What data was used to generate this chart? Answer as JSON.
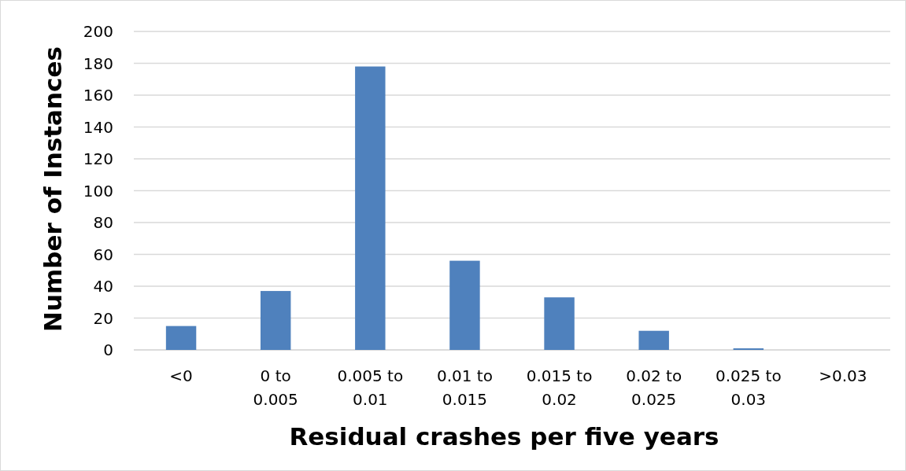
{
  "chart_data": {
    "type": "bar",
    "xlabel": "Residual crashes per five years",
    "ylabel": "Number of Instances",
    "categories": [
      "<0",
      "0  to 0.005",
      "0.005 to 0.01",
      "0.01 to 0.015",
      "0.015 to 0.02",
      "0.02 to 0.025",
      "0.025 to 0.03",
      ">0.03"
    ],
    "values": [
      15,
      37,
      178,
      56,
      33,
      12,
      1,
      0
    ],
    "color": "#4f81bd",
    "ylim": [
      0,
      200
    ],
    "yticks": [
      0,
      20,
      40,
      60,
      80,
      100,
      120,
      140,
      160,
      180,
      200
    ],
    "grid": "y"
  }
}
